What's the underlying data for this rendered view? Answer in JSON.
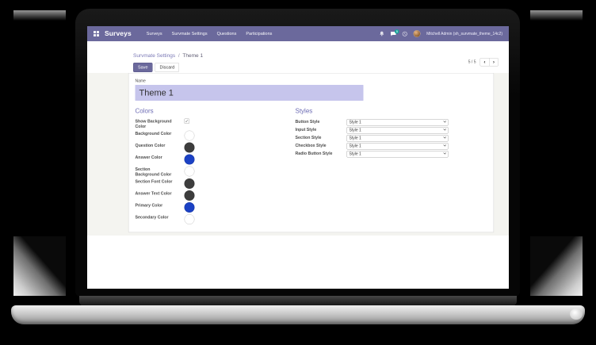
{
  "navbar": {
    "brand": "Surveys",
    "menu": [
      "Surveys",
      "Survmate Settings",
      "Questions",
      "Participations"
    ],
    "message_badge": "5",
    "user_name": "Mitchell Admin (sh_survmate_theme_14c2)",
    "icons": {
      "apps": "grid-icon",
      "notifications": "bell-icon",
      "messages": "chat-bubble-icon",
      "activities": "clock-icon"
    }
  },
  "control_panel": {
    "breadcrumb": {
      "parent": "Survmate Settings",
      "separator": "/",
      "current": "Theme 1"
    },
    "buttons": {
      "save": "Save",
      "discard": "Discard"
    },
    "pager": {
      "text": "5 / 5",
      "prev": "‹",
      "next": "›"
    }
  },
  "form": {
    "name_label": "Name",
    "name_value": "Theme 1",
    "colors": {
      "heading": "Colors",
      "rows": [
        {
          "label": "Show Background Color",
          "type": "checkbox",
          "checked": true
        },
        {
          "label": "Background Color",
          "type": "swatch",
          "color": "#ffffff"
        },
        {
          "label": "Question Color",
          "type": "swatch",
          "color": "#3d3d3d"
        },
        {
          "label": "Answer Color",
          "type": "swatch",
          "color": "#1b41c4"
        },
        {
          "label": "Section Background Color",
          "type": "swatch",
          "color": "#ffffff"
        },
        {
          "label": "Section Font Color",
          "type": "swatch",
          "color": "#3d3d3d"
        },
        {
          "label": "Answer Text Color",
          "type": "swatch",
          "color": "#3d3d3d"
        },
        {
          "label": "Primary Color",
          "type": "swatch",
          "color": "#1b41c4"
        },
        {
          "label": "Secondary Color",
          "type": "swatch",
          "color": "#ffffff"
        }
      ]
    },
    "styles": {
      "heading": "Styles",
      "rows": [
        {
          "label": "Button Style",
          "value": "Style 1"
        },
        {
          "label": "Input Style",
          "value": "Style 1"
        },
        {
          "label": "Section Style",
          "value": "Style 1"
        },
        {
          "label": "Checkbox Style",
          "value": "Style 1"
        },
        {
          "label": "Radio Button Style",
          "value": "Style 1"
        }
      ]
    }
  },
  "theme": {
    "navbar_bg": "#6b699c",
    "accent": "#6d6cb4",
    "link": "#7b79b6",
    "input_bg": "#c6c5ec",
    "badge": "#16a59a",
    "save_bg": "#6b699c",
    "swatch_blue": "#1b41c4",
    "swatch_dark": "#3d3d3d"
  }
}
